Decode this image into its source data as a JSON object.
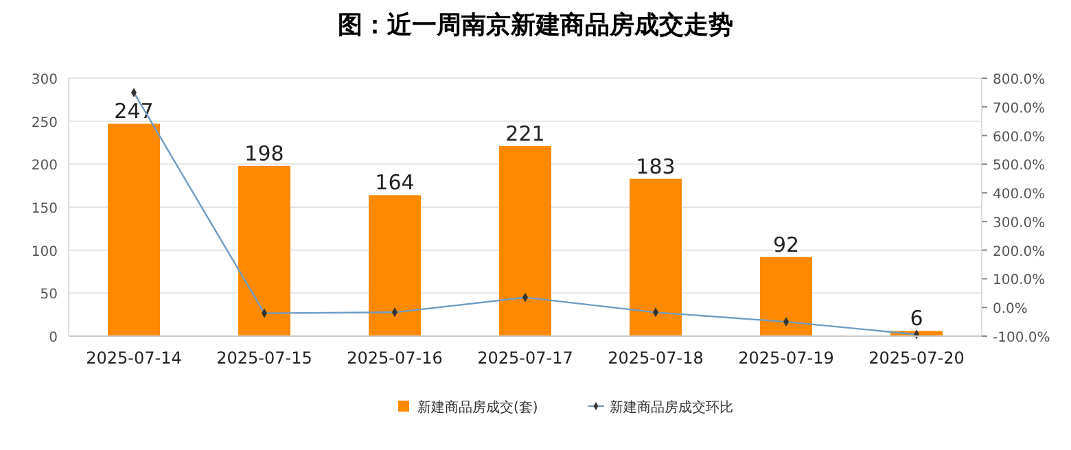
{
  "chart_data": {
    "type": "bar",
    "title": "图：近一周南京新建商品房成交走势",
    "categories": [
      "2025-07-14",
      "2025-07-15",
      "2025-07-16",
      "2025-07-17",
      "2025-07-18",
      "2025-07-19",
      "2025-07-20"
    ],
    "series": [
      {
        "name": "新建商品房成交(套)",
        "color": "#ff8a00",
        "values": [
          247,
          198,
          164,
          221,
          183,
          92,
          6
        ]
      },
      {
        "name": "新建商品房成交环比",
        "type": "line",
        "axis": "y2",
        "color": "#6f9cc4",
        "marker": "diamond",
        "values": [
          750,
          -20,
          -17,
          35,
          -17,
          -50,
          -94
        ]
      }
    ],
    "ylim": [
      0,
      300
    ],
    "yticks": [
      0,
      50,
      100,
      150,
      200,
      250,
      300
    ],
    "y2lim": [
      -100,
      800
    ],
    "y2ticks": [
      {
        "value": -100,
        "label": "-100.0%"
      },
      {
        "value": 0,
        "label": "0.0%"
      },
      {
        "value": 100,
        "label": "100.0%"
      },
      {
        "value": 200,
        "label": "200.0%"
      },
      {
        "value": 300,
        "label": "300.0%"
      },
      {
        "value": 400,
        "label": "400.0%"
      },
      {
        "value": 500,
        "label": "500.0%"
      },
      {
        "value": 600,
        "label": "600.0%"
      },
      {
        "value": 700,
        "label": "700.0%"
      },
      {
        "value": 800,
        "label": "800.0%"
      }
    ],
    "grid": "y",
    "legend": "bottom",
    "value_labels": [
      "247",
      "198",
      "164",
      "221",
      "183",
      "92",
      "6"
    ]
  }
}
